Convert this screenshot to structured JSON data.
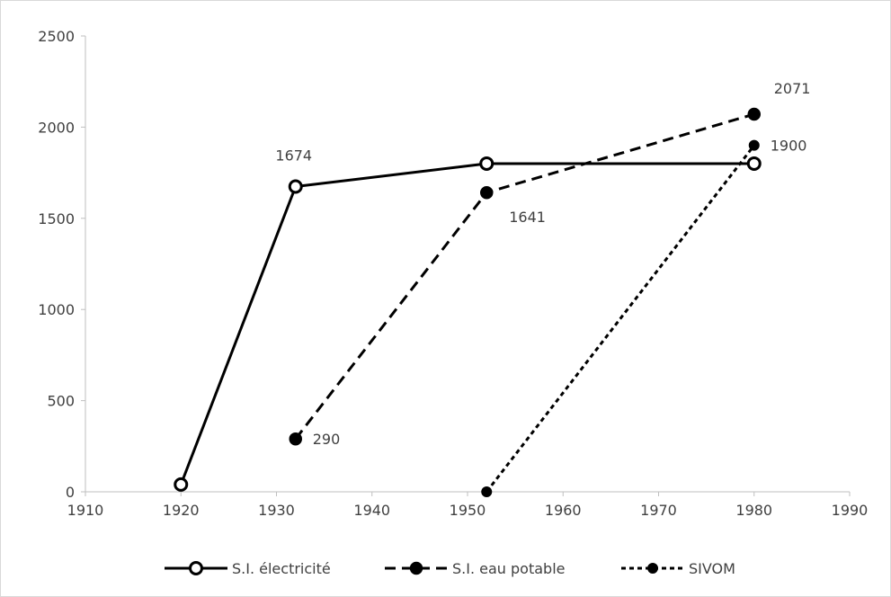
{
  "chart_data": {
    "type": "line",
    "title": "",
    "xlabel": "",
    "ylabel": "",
    "xlim": [
      1910,
      1990
    ],
    "ylim": [
      0,
      2500
    ],
    "xticks": [
      1910,
      1920,
      1930,
      1940,
      1950,
      1960,
      1970,
      1980,
      1990
    ],
    "yticks": [
      0,
      500,
      1000,
      1500,
      2000,
      2500
    ],
    "grid": false,
    "legend_position": "bottom",
    "series": [
      {
        "name": "S.I. électricité",
        "color": "#000000",
        "line_style": "solid",
        "marker": "open-circle",
        "points": [
          {
            "x": 1920,
            "y": 40
          },
          {
            "x": 1932,
            "y": 1674,
            "label": "1674"
          },
          {
            "x": 1952,
            "y": 1800
          },
          {
            "x": 1980,
            "y": 1800
          }
        ]
      },
      {
        "name": "S.I. eau potable",
        "color": "#000000",
        "line_style": "long-dash",
        "marker": "filled-circle",
        "points": [
          {
            "x": 1932,
            "y": 290,
            "label": "290"
          },
          {
            "x": 1952,
            "y": 1641,
            "label": "1641"
          },
          {
            "x": 1980,
            "y": 2071,
            "label": "2071"
          }
        ]
      },
      {
        "name": "SIVOM",
        "color": "#000000",
        "line_style": "short-dash",
        "marker": "small-filled-circle",
        "points": [
          {
            "x": 1952,
            "y": 0
          },
          {
            "x": 1980,
            "y": 1900,
            "label": "1900"
          }
        ]
      }
    ]
  }
}
